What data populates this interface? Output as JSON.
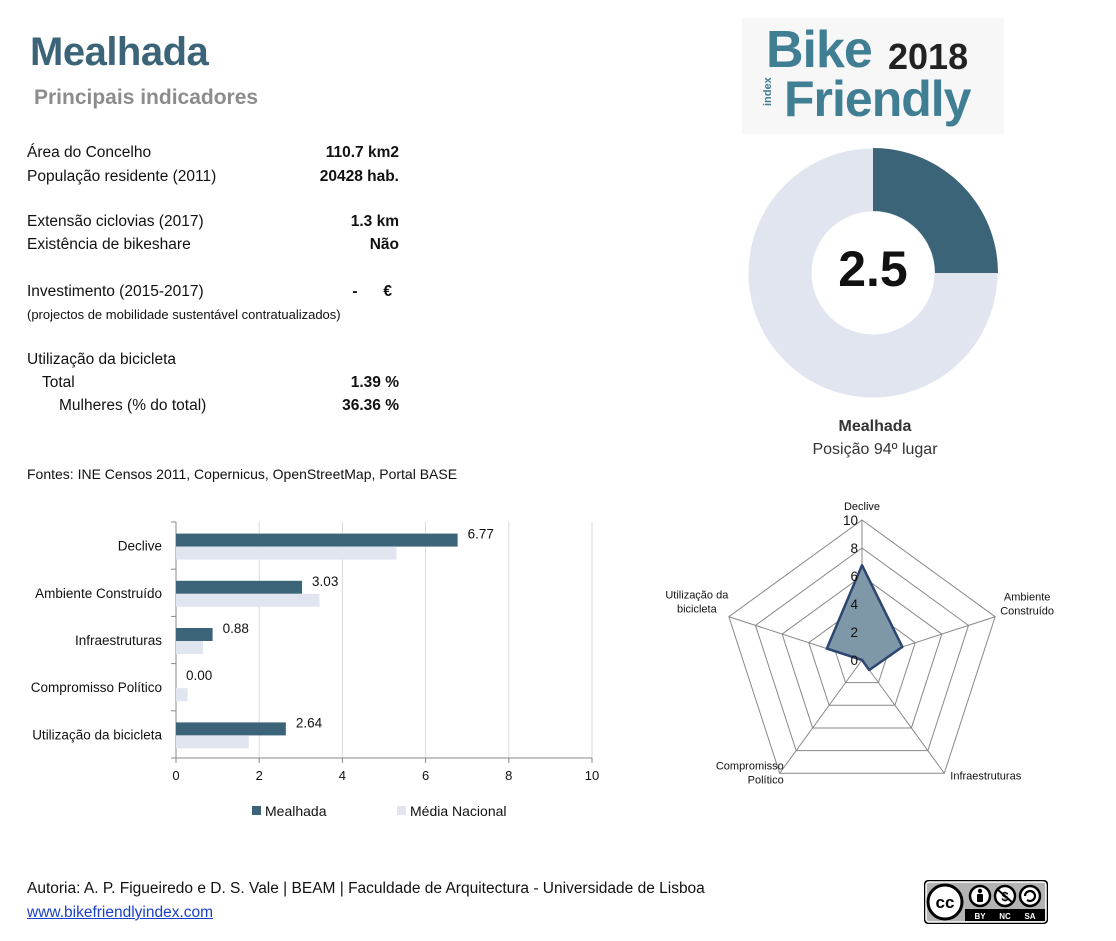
{
  "header": {
    "title": "Mealhada",
    "subtitle": "Principais indicadores"
  },
  "logo": {
    "bike": "Bike",
    "year": "2018",
    "index": "index",
    "friendly": "Friendly"
  },
  "indicators": {
    "area_label": "Área do Concelho",
    "area_value": "110.7 km2",
    "population_label": "População residente (2011)",
    "population_value": "20428 hab.",
    "cycleways_label": "Extensão ciclovias (2017)",
    "cycleways_value": "1.3 km",
    "bikeshare_label": "Existência de bikeshare",
    "bikeshare_value": "Não",
    "investment_label": "Investimento (2015-2017)",
    "investment_value": "-      €",
    "investment_note": "(projectos de mobilidade sustentável contratualizados)",
    "usage_label": "Utilização da bicicleta",
    "total_label": "Total",
    "total_value": "1.39 %",
    "women_label": "Mulheres (% do total)",
    "women_value": "36.36 %"
  },
  "sources": "Fontes: INE Censos 2011, Copernicus, OpenStreetMap,  Portal BASE",
  "score": {
    "value": "2.5",
    "fraction": 0.25,
    "name": "Mealhada",
    "position": "Posição 94º lugar",
    "fill_color": "#3b6478",
    "rest_color": "#e0e5f0"
  },
  "chart_data": [
    {
      "type": "bar",
      "orientation": "horizontal",
      "categories": [
        "Declive",
        "Ambiente Construído",
        "Infraestruturas",
        "Compromisso Político",
        "Utilização da bicicleta"
      ],
      "series": [
        {
          "name": "Mealhada",
          "values": [
            6.77,
            3.03,
            0.88,
            0.0,
            2.64
          ],
          "color": "#3b6478",
          "labels": [
            "6.77",
            "3.03",
            "0.88",
            "0.00",
            "2.64"
          ]
        },
        {
          "name": "Média Nacional",
          "values": [
            5.3,
            3.45,
            0.65,
            0.28,
            1.75
          ],
          "color": "#e0e5f0"
        }
      ],
      "xlim": [
        0,
        10
      ],
      "xticks": [
        0,
        2,
        4,
        6,
        8,
        10
      ],
      "grid": true,
      "legend": "bottom"
    },
    {
      "type": "radar",
      "axes": [
        "Declive",
        "Ambiente Construído",
        "Infraestruturas",
        "Compromisso Político",
        "Utilização da bicicleta"
      ],
      "axis_labels": [
        [
          "Declive"
        ],
        [
          "Ambiente",
          "Construído"
        ],
        [
          "Infraestruturas"
        ],
        [
          "Compromisso",
          "Político"
        ],
        [
          "Utilização da",
          "bicicleta"
        ]
      ],
      "values": [
        6.77,
        3.03,
        0.88,
        0.0,
        2.64
      ],
      "range": [
        0,
        10
      ],
      "ticks": [
        0,
        2,
        4,
        6,
        8,
        10
      ],
      "fill_color": "#7f98a8",
      "line_color": "#2c4571"
    }
  ],
  "footer": {
    "credits": "Autoria: A. P. Figueiredo e D. S. Vale | BEAM | Faculdade de Arquitectura - Universidade de Lisboa",
    "link": "www.bikefriendlyindex.com",
    "license": [
      "BY",
      "NC",
      "SA"
    ]
  }
}
